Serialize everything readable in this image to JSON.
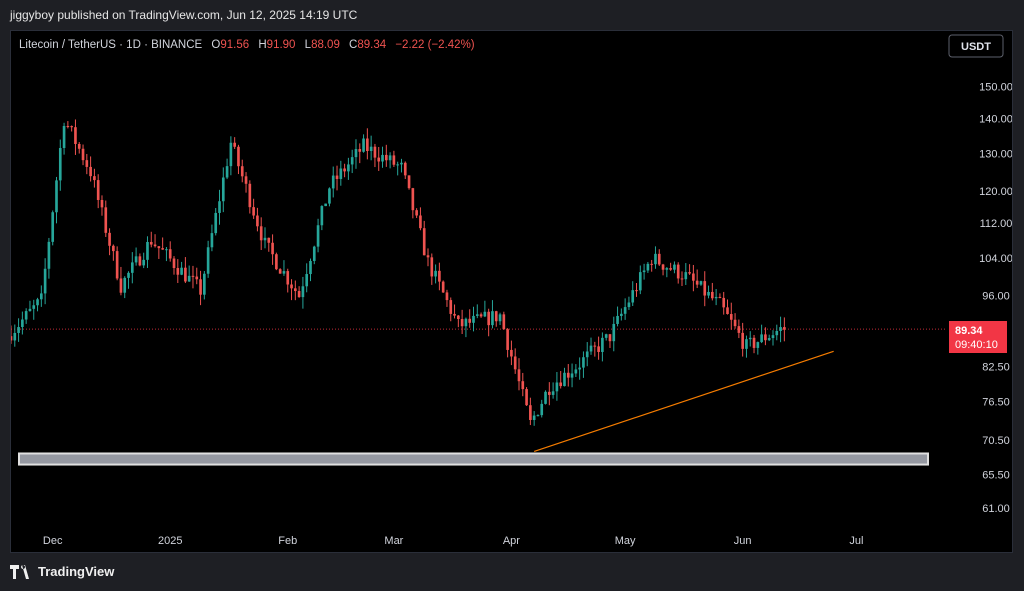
{
  "header": {
    "published": "jiggyboy published on TradingView.com, Jun 12, 2025 14:19 UTC"
  },
  "legend": {
    "symbol": "Litecoin / TetherUS · 1D · BINANCE",
    "o_label": "O",
    "o": "91.56",
    "h_label": "H",
    "h": "91.90",
    "l_label": "L",
    "l": "88.09",
    "c_label": "C",
    "c": "89.34",
    "change": "−2.22 (−2.42%)"
  },
  "currency_button": "USDT",
  "footer": {
    "brand": "TradingView"
  },
  "colors": {
    "up": "#26a69a",
    "down": "#ef5350",
    "trendline": "#f57c00",
    "price_tag": "#f23645"
  },
  "chart_data": {
    "type": "candlestick",
    "price_axis": {
      "ticks": [
        150.0,
        140.0,
        130.0,
        120.0,
        112.0,
        104.0,
        96.0,
        82.5,
        76.5,
        70.5,
        65.5,
        61.0
      ],
      "tick_labels": [
        "150.00",
        "140.00",
        "130.00",
        "120.00",
        "112.00",
        "104.00",
        "96.00",
        "82.50",
        "76.50",
        "70.50",
        "65.50",
        "61.00"
      ],
      "scale": "log",
      "range": [
        58.8,
        157.0
      ]
    },
    "time_axis": {
      "labels": [
        "Dec",
        "2025",
        "Feb",
        "Mar",
        "Apr",
        "May",
        "Jun",
        "Jul"
      ],
      "label_dates": [
        "2024-12-01",
        "2025-01-01",
        "2025-02-01",
        "2025-03-01",
        "2025-04-01",
        "2025-05-01",
        "2025-06-01",
        "2025-07-01"
      ],
      "range": [
        "2024-11-20",
        "2025-07-22"
      ]
    },
    "last_price": {
      "value": 89.34,
      "label": "89.34",
      "countdown": "09:40:10"
    },
    "trendline": {
      "start": {
        "date": "2025-04-07",
        "price": 68.8
      },
      "end": {
        "date": "2025-06-25",
        "price": 85.2
      }
    },
    "support_zone": {
      "price_low": 66.9,
      "price_high": 68.5,
      "from": "2024-11-20",
      "to": "2025-07-22"
    },
    "key_prices": [
      {
        "date": "2024-11-20",
        "price": 88
      },
      {
        "date": "2024-11-29",
        "price": 95
      },
      {
        "date": "2024-12-05",
        "price": 140
      },
      {
        "date": "2024-12-12",
        "price": 125
      },
      {
        "date": "2024-12-20",
        "price": 98
      },
      {
        "date": "2024-12-28",
        "price": 108
      },
      {
        "date": "2025-01-10",
        "price": 97
      },
      {
        "date": "2025-01-18",
        "price": 133
      },
      {
        "date": "2025-01-27",
        "price": 107
      },
      {
        "date": "2025-02-05",
        "price": 96
      },
      {
        "date": "2025-02-13",
        "price": 121
      },
      {
        "date": "2025-02-22",
        "price": 132
      },
      {
        "date": "2025-03-04",
        "price": 126
      },
      {
        "date": "2025-03-11",
        "price": 103
      },
      {
        "date": "2025-03-19",
        "price": 90
      },
      {
        "date": "2025-03-30",
        "price": 92
      },
      {
        "date": "2025-04-07",
        "price": 73
      },
      {
        "date": "2025-04-12",
        "price": 79
      },
      {
        "date": "2025-04-20",
        "price": 83
      },
      {
        "date": "2025-04-28",
        "price": 88
      },
      {
        "date": "2025-05-09",
        "price": 104
      },
      {
        "date": "2025-05-18",
        "price": 100
      },
      {
        "date": "2025-05-27",
        "price": 94
      },
      {
        "date": "2025-06-03",
        "price": 86
      },
      {
        "date": "2025-06-12",
        "price": 89.34
      }
    ]
  }
}
